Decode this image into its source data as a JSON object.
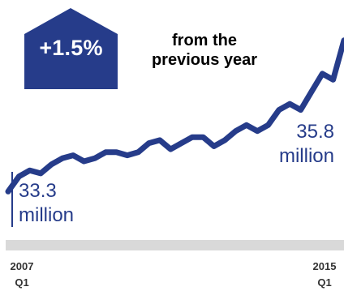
{
  "chart_data": {
    "type": "line",
    "headline": {
      "change": "+1.5%",
      "text_line1": "from the",
      "text_line2": "previous year"
    },
    "start_label": {
      "value": "33.3",
      "unit": "million"
    },
    "end_label": {
      "value": "35.8",
      "unit": "million"
    },
    "x_ticks": [
      {
        "year": "2007",
        "quarter": "Q1"
      },
      {
        "year": "2015",
        "quarter": "Q1"
      }
    ],
    "series": [
      {
        "values": [
          33.3,
          33.55,
          33.65,
          33.6,
          33.75,
          33.85,
          33.9,
          33.8,
          33.85,
          33.95,
          33.95,
          33.9,
          33.95,
          34.1,
          34.15,
          34.0,
          34.1,
          34.2,
          34.2,
          34.05,
          34.15,
          34.3,
          34.4,
          34.3,
          34.4,
          34.65,
          34.75,
          34.65,
          34.95,
          35.25,
          35.15,
          35.8
        ]
      }
    ],
    "ylim": [
      32.5,
      36.2
    ],
    "colors": {
      "line": "#263c8a",
      "badge": "#263c8a",
      "band": "#d9d9d9"
    },
    "grid": false,
    "legend": "none"
  }
}
